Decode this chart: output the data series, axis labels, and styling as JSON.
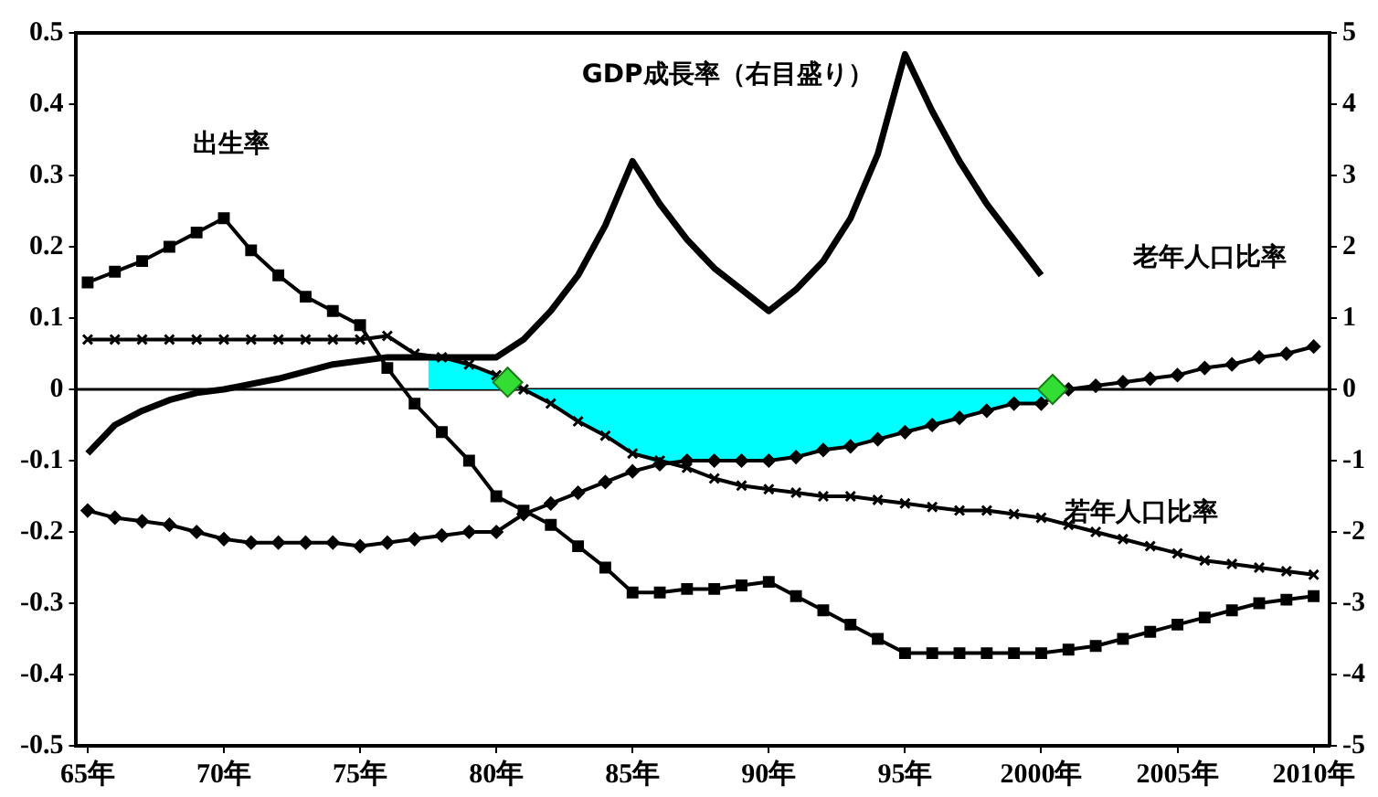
{
  "chart_data": {
    "type": "line",
    "x": [
      "1965",
      "1966",
      "1967",
      "1968",
      "1969",
      "1970",
      "1971",
      "1972",
      "1973",
      "1974",
      "1975",
      "1976",
      "1977",
      "1978",
      "1979",
      "1980",
      "1981",
      "1982",
      "1983",
      "1984",
      "1985",
      "1986",
      "1987",
      "1988",
      "1989",
      "1990",
      "1991",
      "1992",
      "1993",
      "1994",
      "1995",
      "1996",
      "1997",
      "1998",
      "1999",
      "2000",
      "2001",
      "2002",
      "2003",
      "2004",
      "2005",
      "2006",
      "2007",
      "2008",
      "2009",
      "2010"
    ],
    "xlim": [
      "1964-08",
      "2010-08"
    ],
    "xticks": [
      {
        "value": "1965",
        "label": "65年"
      },
      {
        "value": "1970",
        "label": "70年"
      },
      {
        "value": "1975",
        "label": "75年"
      },
      {
        "value": "1980",
        "label": "80年"
      },
      {
        "value": "1985",
        "label": "85年"
      },
      {
        "value": "1990",
        "label": "90年"
      },
      {
        "value": "1995",
        "label": "95年"
      },
      {
        "value": "2000",
        "label": "2000年"
      },
      {
        "value": "2005",
        "label": "2005年"
      },
      {
        "value": "2010",
        "label": "2010年"
      }
    ],
    "ylim": [
      -0.5,
      0.5
    ],
    "yticks": [
      -0.5,
      -0.4,
      -0.3,
      -0.2,
      -0.1,
      0,
      0.1,
      0.2,
      0.3,
      0.4,
      0.5
    ],
    "y2lim": [
      -5,
      5
    ],
    "y2ticks": [
      -5,
      -4,
      -3,
      -2,
      -1,
      0,
      1,
      2,
      3,
      4,
      5
    ],
    "grid": false,
    "legend": false,
    "ref_lines": [
      {
        "axis": "y",
        "value": 0,
        "color": "#000000"
      }
    ],
    "series": [
      {
        "type": "area",
        "color": "#00ffff",
        "marker": "none",
        "x": [
          "1977-07",
          "1978",
          "1979",
          "1980",
          "1981",
          "1982",
          "1983",
          "1984",
          "1985",
          "1986",
          "1987",
          "1988",
          "1989",
          "1990",
          "1991",
          "1992",
          "1993",
          "1994",
          "1995",
          "1996",
          "1997",
          "1998",
          "1999",
          "2000",
          "2000-06"
        ],
        "values": [
          0.045,
          0.045,
          0.035,
          0.02,
          0,
          -0.02,
          -0.045,
          -0.065,
          -0.09,
          -0.105,
          -0.1,
          -0.1,
          -0.1,
          -0.1,
          -0.095,
          -0.085,
          -0.08,
          -0.07,
          -0.06,
          -0.05,
          -0.04,
          -0.03,
          -0.02,
          -0.02,
          0
        ]
      },
      {
        "type": "line",
        "name": "出生率",
        "color": "#000000",
        "marker": "square",
        "values": [
          0.15,
          0.165,
          0.18,
          0.2,
          0.22,
          0.24,
          0.195,
          0.16,
          0.13,
          0.11,
          0.09,
          0.03,
          -0.02,
          -0.06,
          -0.1,
          -0.15,
          -0.17,
          -0.19,
          -0.22,
          -0.25,
          -0.285,
          -0.285,
          -0.28,
          -0.28,
          -0.275,
          -0.27,
          -0.29,
          -0.31,
          -0.33,
          -0.35,
          -0.37,
          -0.37,
          -0.37,
          -0.37,
          -0.37,
          -0.37,
          -0.365,
          -0.36,
          -0.35,
          -0.34,
          -0.33,
          -0.32,
          -0.31,
          -0.3,
          -0.295,
          -0.29
        ]
      },
      {
        "type": "line",
        "name": "若年人口比率",
        "color": "#000000",
        "marker": "cross",
        "values": [
          0.07,
          0.07,
          0.07,
          0.07,
          0.07,
          0.07,
          0.07,
          0.07,
          0.07,
          0.07,
          0.07,
          0.075,
          0.05,
          0.045,
          0.035,
          0.02,
          0,
          -0.02,
          -0.045,
          -0.065,
          -0.09,
          -0.1,
          -0.11,
          -0.125,
          -0.135,
          -0.14,
          -0.145,
          -0.15,
          -0.15,
          -0.155,
          -0.16,
          -0.165,
          -0.17,
          -0.17,
          -0.175,
          -0.18,
          -0.19,
          -0.2,
          -0.21,
          -0.22,
          -0.23,
          -0.24,
          -0.245,
          -0.25,
          -0.255,
          -0.26
        ]
      },
      {
        "type": "line",
        "name": "老年人口比率",
        "color": "#000000",
        "marker": "diamond",
        "values": [
          -0.17,
          -0.18,
          -0.185,
          -0.19,
          -0.2,
          -0.21,
          -0.215,
          -0.215,
          -0.215,
          -0.215,
          -0.22,
          -0.215,
          -0.21,
          -0.205,
          -0.2,
          -0.2,
          -0.175,
          -0.16,
          -0.145,
          -0.13,
          -0.115,
          -0.105,
          -0.1,
          -0.1,
          -0.1,
          -0.1,
          -0.095,
          -0.085,
          -0.08,
          -0.07,
          -0.06,
          -0.05,
          -0.04,
          -0.03,
          -0.02,
          -0.02,
          0,
          0.005,
          0.01,
          0.015,
          0.02,
          0.03,
          0.035,
          0.045,
          0.05,
          0.06
        ]
      },
      {
        "type": "line",
        "name": "GDP成長率（右目盛り）",
        "color": "#000000",
        "marker": "none",
        "axis": "y2",
        "x": [
          "1965",
          "1966",
          "1967",
          "1968",
          "1969",
          "1970",
          "1972",
          "1974",
          "1976",
          "1978",
          "1980",
          "1981",
          "1982",
          "1983",
          "1984",
          "1985",
          "1986",
          "1987",
          "1988",
          "1989",
          "1990",
          "1991",
          "1992",
          "1993",
          "1994",
          "1995",
          "1996",
          "1997",
          "1998",
          "1999",
          "2000"
        ],
        "values": [
          -0.9,
          -0.5,
          -0.3,
          -0.15,
          -0.05,
          0,
          0.15,
          0.35,
          0.45,
          0.45,
          0.45,
          0.7,
          1.1,
          1.6,
          2.3,
          3.2,
          2.6,
          2.1,
          1.7,
          1.4,
          1.1,
          1.4,
          1.8,
          2.4,
          3.3,
          4.7,
          3.9,
          3.2,
          2.6,
          2.1,
          1.6
        ]
      },
      {
        "type": "scatter",
        "color": "#33dd33",
        "marker": "diamond",
        "x": [
          "1980-06",
          "2000-06"
        ],
        "values": [
          0.01,
          0
        ]
      }
    ]
  }
}
